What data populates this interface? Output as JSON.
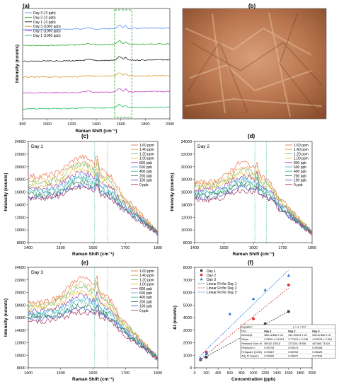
{
  "colors": {
    "ppb_series": [
      "#e8734a",
      "#e6a85a",
      "#7cbf6a",
      "#f0c030",
      "#9a4fb0",
      "#5ab4e6",
      "#40c0a0",
      "#2f7f5f",
      "#3a60c0",
      "#a83a60",
      "#202020"
    ],
    "raman_series": [
      "#5b8ff9",
      "#2aa82a",
      "#222222",
      "#d79a2b",
      "#c840c8",
      "#22bb66"
    ],
    "fit": {
      "day1": "#333333",
      "day2": "#e03030",
      "day3": "#2277dd"
    },
    "highlight_box": "#2eae2e",
    "dotted_line": "#40b0a0"
  },
  "chart_data": [
    {
      "panel": "(a)",
      "type": "line",
      "xlabel": "Raman Shift (cm⁻¹)",
      "ylabel": "Intensity (counts)",
      "xlim": [
        800,
        2000
      ],
      "xticks": [
        800,
        1000,
        1200,
        1400,
        1600,
        1800,
        2000
      ],
      "highlight_range": [
        1550,
        1690
      ],
      "legend_position": "top-left",
      "series": [
        {
          "name": "Day 3 ( 0 ppb)",
          "offset": 5
        },
        {
          "name": "Day 2 ( 0 ppb)",
          "offset": 4
        },
        {
          "name": "Day 1 ( 0 ppb)",
          "offset": 3
        },
        {
          "name": "Day 3 (1000 ppb)",
          "offset": 2
        },
        {
          "name": "Day 2 (1000 ppb)",
          "offset": 1
        },
        {
          "name": "Day 1 (1000 ppb)",
          "offset": 0
        }
      ]
    },
    {
      "panel": "(c)",
      "type": "line",
      "day_label": "Day 1",
      "xlabel": "Raman Shift (cm⁻¹)",
      "ylabel": "Intensity (counts)",
      "xlim": [
        1400,
        1800
      ],
      "ylim": [
        8000,
        24000
      ],
      "xticks": [
        1400,
        1500,
        1600,
        1700,
        1800
      ],
      "yticks": [
        8000,
        10000,
        12000,
        14000,
        16000,
        18000,
        20000,
        22000,
        24000
      ],
      "vlines": [
        1605,
        1645
      ],
      "series": [
        {
          "name": "1.60 ppm",
          "base": 18500,
          "amp": 3000
        },
        {
          "name": "1.40 ppm",
          "base": 18000,
          "amp": 2600
        },
        {
          "name": "1.20 ppm",
          "base": 17500,
          "amp": 2900
        },
        {
          "name": "1.00 ppm",
          "base": 17000,
          "amp": 2700
        },
        {
          "name": "800 ppb",
          "base": 16700,
          "amp": 2400
        },
        {
          "name": "600 ppb",
          "base": 16200,
          "amp": 2300
        },
        {
          "name": "400 ppb",
          "base": 15900,
          "amp": 2200
        },
        {
          "name": "200 ppb",
          "base": 15600,
          "amp": 2000
        },
        {
          "name": "100 ppb",
          "base": 15300,
          "amp": 1800
        },
        {
          "name": "0 ppb",
          "base": 15000,
          "amp": 1700
        }
      ]
    },
    {
      "panel": "(d)",
      "type": "line",
      "day_label": "Day 2",
      "xlabel": "Raman Shift (cm⁻¹)",
      "ylabel": "Intensity (counts)",
      "xlim": [
        1400,
        1800
      ],
      "ylim": [
        8000,
        24000
      ],
      "xticks": [
        1400,
        1500,
        1600,
        1700,
        1800
      ],
      "yticks": [
        8000,
        10000,
        12000,
        14000,
        16000,
        18000,
        20000,
        22000,
        24000
      ],
      "vlines": [
        1605,
        1645
      ],
      "series": [
        {
          "name": "1.60 ppm",
          "base": 17500,
          "amp": 3200
        },
        {
          "name": "1.40 ppm",
          "base": 17200,
          "amp": 2700
        },
        {
          "name": "1.20 ppm",
          "base": 16900,
          "amp": 2500
        },
        {
          "name": "1.00 ppm",
          "base": 16600,
          "amp": 2300
        },
        {
          "name": "800 ppb",
          "base": 16300,
          "amp": 2200
        },
        {
          "name": "600 ppb",
          "base": 16000,
          "amp": 2100
        },
        {
          "name": "400 ppb",
          "base": 15700,
          "amp": 2000
        },
        {
          "name": "200 ppb",
          "base": 15400,
          "amp": 1900
        },
        {
          "name": "100 ppb",
          "base": 15100,
          "amp": 1700
        },
        {
          "name": "0 ppb",
          "base": 14800,
          "amp": 1500
        }
      ]
    },
    {
      "panel": "(e)",
      "type": "line",
      "day_label": "Day 3",
      "xlabel": "Raman Shift (cm⁻¹)",
      "ylabel": "Intensity (counts)",
      "xlim": [
        1400,
        1800
      ],
      "ylim": [
        8000,
        24000
      ],
      "xticks": [
        1400,
        1500,
        1600,
        1700,
        1800
      ],
      "yticks": [
        8000,
        10000,
        12000,
        14000,
        16000,
        18000,
        20000,
        22000,
        24000
      ],
      "vlines": [
        1605,
        1645
      ],
      "series": [
        {
          "name": "1.60 ppm",
          "base": 18500,
          "amp": 3800
        },
        {
          "name": "1.40 ppm",
          "base": 18200,
          "amp": 3300
        },
        {
          "name": "1.20 ppm",
          "base": 17900,
          "amp": 3000
        },
        {
          "name": "1.00 ppm",
          "base": 17400,
          "amp": 2700
        },
        {
          "name": "800 ppb",
          "base": 17000,
          "amp": 2500
        },
        {
          "name": "600 ppb",
          "base": 16700,
          "amp": 2300
        },
        {
          "name": "400 ppb",
          "base": 16400,
          "amp": 2100
        },
        {
          "name": "200 ppb",
          "base": 16100,
          "amp": 1900
        },
        {
          "name": "100 ppb",
          "base": 15800,
          "amp": 1700
        },
        {
          "name": "0 ppb",
          "base": 15400,
          "amp": 1500
        }
      ]
    },
    {
      "panel": "(f)",
      "type": "scatter",
      "xlabel": "Concentration (ppb)",
      "ylabel": "ΔI (counts)",
      "xlim": [
        0,
        2000
      ],
      "ylim": [
        0,
        8000
      ],
      "xticks": [
        0,
        200,
        400,
        600,
        800,
        1000,
        1200,
        1400,
        1600,
        1800,
        2000
      ],
      "yticks": [
        0,
        1000,
        2000,
        3000,
        4000,
        5000,
        6000,
        7000,
        8000
      ],
      "legend_position": "top-left",
      "series": [
        {
          "name": "Day 1",
          "fit_name": "Linear Fit for Day 1",
          "x": [
            100,
            200,
            800,
            1200,
            1600
          ],
          "y": [
            640,
            850,
            2350,
            3500,
            4480
          ],
          "intercept": 386.12,
          "slope": 2.5653
        },
        {
          "name": "Day 2",
          "fit_name": "Linear Fit for Day 2",
          "x": [
            100,
            200,
            800,
            1000,
            1600
          ],
          "y": [
            700,
            1250,
            3000,
            3900,
            6600
          ],
          "intercept": 311.9031,
          "slope": 3.7762
        },
        {
          "name": "Day 3",
          "fit_name": "Linear Fit for Day 3",
          "x": [
            100,
            200,
            600,
            1000,
            1200,
            1600
          ],
          "y": [
            750,
            1100,
            4300,
            5500,
            6200,
            7350
          ],
          "intercept": 535.87482,
          "slope": 4.5328
        }
      ],
      "fit_table": {
        "rows": [
          [
            "Equation",
            "y = a + b*x",
            "",
            ""
          ],
          [
            "Plot",
            "Day 1",
            "Day 2",
            "Day 3"
          ],
          [
            "Intercept",
            "386.12386 ± 10",
            "311.90314 ± 22",
            "535.87482 ± 37"
          ],
          [
            "Slope",
            "2.5653 ± 0.1064",
            "3.77619 ± 0.245",
            "4.53278 ± 0.351"
          ],
          [
            "Residual Sum of",
            "58162.13518",
            "272324.74008",
            "467465.71424"
          ],
          [
            "Pearson's r",
            "0.99733",
            "0.99374",
            "0.99108"
          ],
          [
            "R-Square (COD)",
            "0.99467",
            "0.98753",
            "0.98225"
          ],
          [
            "Adj. R-Square",
            "0.99289",
            "0.98337",
            "0.97633"
          ]
        ]
      }
    }
  ],
  "panels": {
    "a": {
      "label": "(a)"
    },
    "b": {
      "label": "(b)"
    },
    "c": {
      "label": "(c)"
    },
    "d": {
      "label": "(d)"
    },
    "e": {
      "label": "(e)"
    },
    "f": {
      "label": "(f)"
    }
  }
}
